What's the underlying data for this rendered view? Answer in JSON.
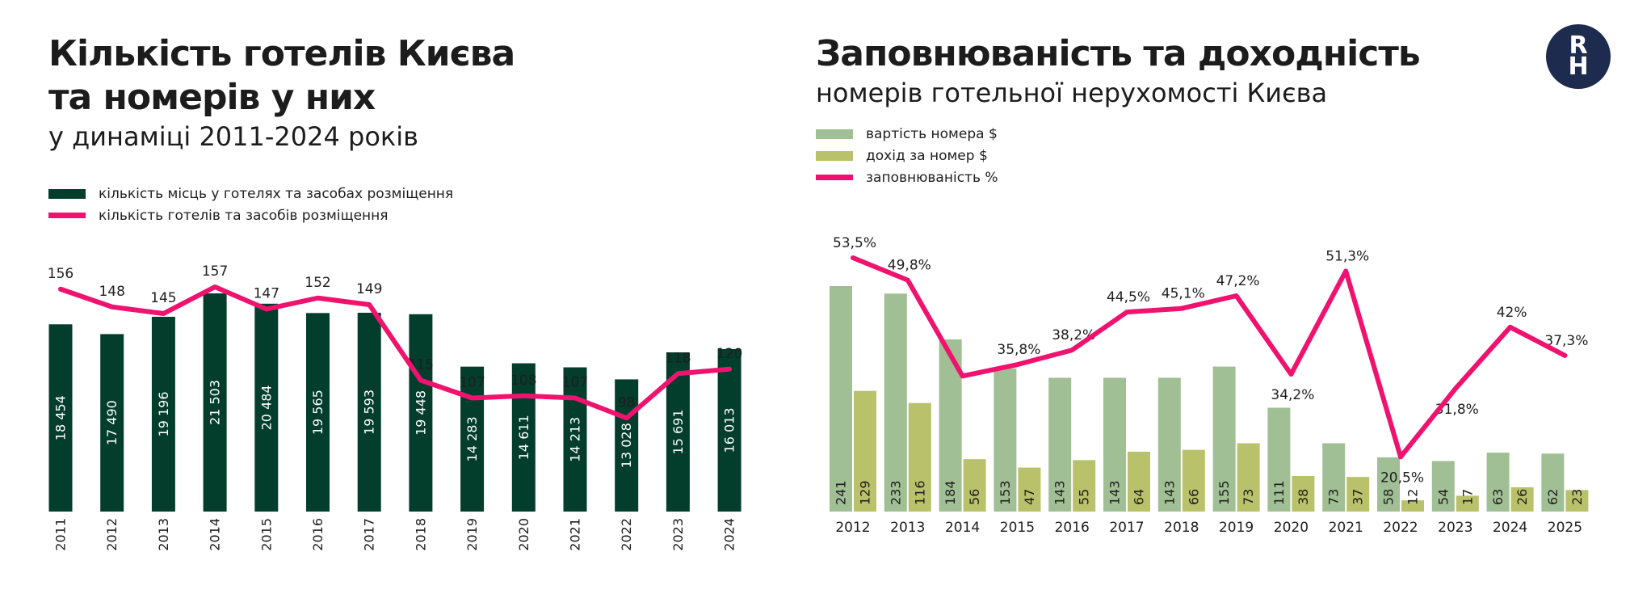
{
  "left": {
    "title_line1": "Кількість готелів Києва",
    "title_line2": "та номерів у них",
    "subtitle": "у динаміці 2011-2024 років",
    "legend": [
      "кількість місць у готелях та засобах розміщення",
      "кількість готелів та засобів розміщення"
    ]
  },
  "right": {
    "title": "Заповнюваність та доходність",
    "subtitle": "номерів готельної нерухомості Києва",
    "legend": [
      "вартість номера $",
      "дохід за номер $",
      "заповнюваність %"
    ]
  },
  "logo": {
    "line1": "R",
    "line2": "H"
  },
  "colors": {
    "dark_green": "#033d2c",
    "pink": "#f0126e",
    "light_green": "#a1bf95",
    "olive": "#b9c26a",
    "logo_navy": "#1d2b4e"
  },
  "chart_data": [
    {
      "type": "bar",
      "categories": [
        "2011",
        "2012",
        "2013",
        "2014",
        "2015",
        "2016",
        "2017",
        "2018",
        "2019",
        "2020",
        "2021",
        "2022",
        "2023",
        "2024"
      ],
      "series": [
        {
          "name": "кількість місць у готелях та засобах розміщення",
          "type": "bar",
          "values": [
            18454,
            17490,
            19196,
            21503,
            20484,
            19565,
            19593,
            19448,
            14283,
            14611,
            14213,
            13028,
            15691,
            16013
          ],
          "labels": [
            "18 454",
            "17 490",
            "19 196",
            "21 503",
            "20 484",
            "19 565",
            "19 593",
            "19 448",
            "14 283",
            "14 611",
            "14 213",
            "13 028",
            "15 691",
            "16 013"
          ]
        },
        {
          "name": "кількість готелів та засобів розміщення",
          "type": "line",
          "values": [
            156,
            148,
            145,
            157,
            147,
            152,
            149,
            115,
            107,
            108,
            107,
            98,
            118,
            120
          ]
        }
      ]
    },
    {
      "type": "bar",
      "categories": [
        "2012",
        "2013",
        "2014",
        "2015",
        "2016",
        "2017",
        "2018",
        "2019",
        "2020",
        "2021",
        "2022",
        "2023",
        "2024",
        "2025"
      ],
      "series": [
        {
          "name": "вартість номера $",
          "type": "bar",
          "values": [
            241,
            233,
            184,
            153,
            143,
            143,
            143,
            155,
            111,
            73,
            58,
            54,
            63,
            62
          ]
        },
        {
          "name": "дохід за номер $",
          "type": "bar",
          "values": [
            129,
            116,
            56,
            47,
            55,
            64,
            66,
            73,
            38,
            37,
            12,
            17,
            26,
            23
          ]
        },
        {
          "name": "заповнюваність %",
          "type": "line",
          "values": [
            53.5,
            49.8,
            33.9,
            35.8,
            38.2,
            44.5,
            45.1,
            47.2,
            34.2,
            51.3,
            20.5,
            31.8,
            42,
            37.3
          ],
          "labels": [
            "53,5%",
            "49,8%",
            "",
            "35,8%",
            "38,2%",
            "44,5%",
            "45,1%",
            "47,2%",
            "34,2%",
            "51,3%",
            "20,5%",
            "31,8%",
            "42%",
            "37,3%"
          ]
        }
      ]
    }
  ]
}
